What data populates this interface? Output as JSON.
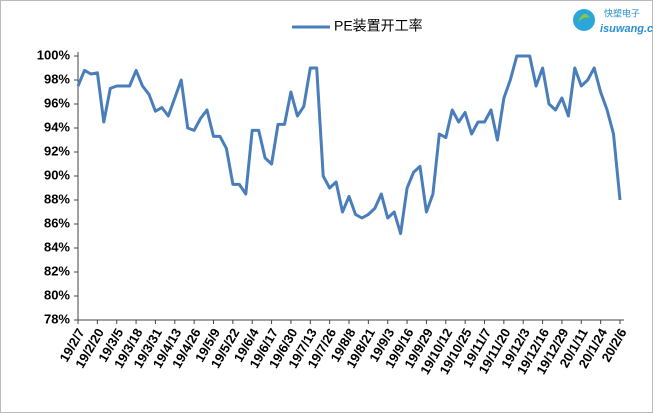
{
  "chart_data": {
    "type": "line",
    "categories": [
      "19/2/7",
      null,
      null,
      "19/2/20",
      null,
      null,
      "19/3/5",
      null,
      null,
      "19/3/18",
      null,
      null,
      "19/3/31",
      null,
      null,
      "19/4/13",
      null,
      null,
      "19/4/26",
      null,
      null,
      "19/5/9",
      null,
      null,
      "19/5/22",
      null,
      null,
      "19/6/4",
      null,
      null,
      "19/6/17",
      null,
      null,
      "19/6/30",
      null,
      null,
      "19/7/13",
      null,
      null,
      "19/7/26",
      null,
      null,
      "19/8/8",
      null,
      null,
      "19/8/21",
      null,
      null,
      "19/9/3",
      null,
      null,
      "19/9/16",
      null,
      null,
      "19/9/29",
      null,
      null,
      "19/10/12",
      null,
      null,
      "19/10/25",
      null,
      null,
      "19/11/7",
      null,
      null,
      "19/11/20",
      null,
      null,
      "19/12/3",
      null,
      null,
      "19/12/16",
      null,
      null,
      "19/12/29",
      null,
      null,
      "20/1/11",
      null,
      null,
      "20/1/24",
      null,
      null,
      "20/2/6"
    ],
    "series": [
      {
        "name": "PE装置开工率",
        "color": "#4a7ebb",
        "values": [
          97.5,
          98.8,
          98.5,
          98.6,
          94.5,
          97.3,
          97.5,
          97.5,
          97.5,
          98.8,
          97.5,
          96.8,
          95.4,
          95.7,
          95,
          96.5,
          98,
          94,
          93.8,
          94.8,
          95.5,
          93.3,
          93.3,
          92.3,
          89.3,
          89.3,
          88.5,
          93.8,
          93.8,
          91.5,
          91,
          94.3,
          94.3,
          97,
          95,
          95.8,
          99,
          99,
          90,
          89,
          89.5,
          87,
          88.3,
          86.8,
          86.5,
          86.8,
          87.3,
          88.5,
          86.5,
          87,
          85.2,
          89,
          90.3,
          90.8,
          87,
          88.5,
          93.5,
          93.2,
          95.5,
          94.5,
          95.3,
          93.5,
          94.5,
          94.5,
          95.5,
          93,
          96.5,
          98,
          100,
          100,
          100,
          97.5,
          99,
          96,
          95.5,
          96.5,
          95,
          99,
          97.5,
          98,
          99,
          97,
          95.5,
          93.5,
          88
        ]
      }
    ],
    "ylim": [
      78,
      100
    ],
    "yticks": [
      {
        "value": 78,
        "label": "78%"
      },
      {
        "value": 80,
        "label": "80%"
      },
      {
        "value": 82,
        "label": "82%"
      },
      {
        "value": 84,
        "label": "84%"
      },
      {
        "value": 86,
        "label": "86%"
      },
      {
        "value": 88,
        "label": "88%"
      },
      {
        "value": 90,
        "label": "90%"
      },
      {
        "value": 92,
        "label": "92%"
      },
      {
        "value": 94,
        "label": "94%"
      },
      {
        "value": 96,
        "label": "96%"
      },
      {
        "value": 98,
        "label": "98%"
      },
      {
        "value": 100,
        "label": "100%"
      }
    ],
    "logo": [
      "快塑电子",
      "isuwang.c"
    ]
  }
}
